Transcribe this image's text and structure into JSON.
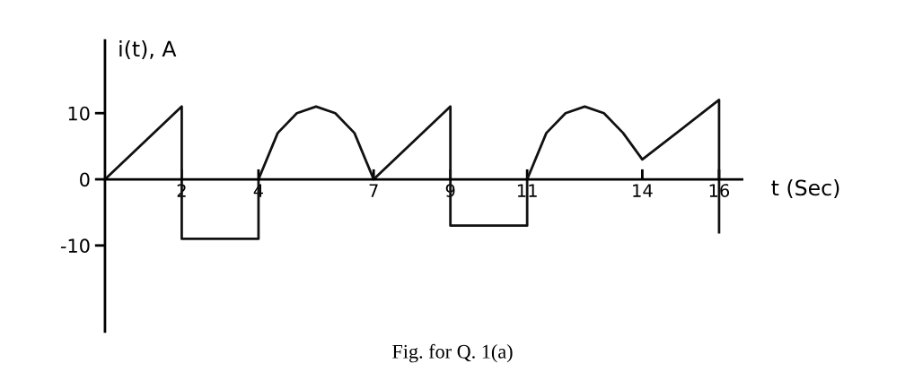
{
  "chart_data": {
    "type": "line",
    "xlabel": "t (Sec)",
    "ylabel": "i(t), A",
    "annotations": [
      "Fig. for Q. 1(a)"
    ],
    "series": [
      {
        "color": "#111111",
        "x": [
          0,
          2,
          2,
          4,
          4,
          4.5,
          5,
          5.5,
          6,
          6.5,
          7,
          9,
          9,
          11,
          11,
          11.5,
          12,
          12.5,
          13,
          13.5,
          14,
          16,
          16
        ],
        "values": [
          0,
          11,
          -9,
          -9,
          0,
          7,
          10,
          11,
          10,
          7,
          0,
          11,
          -7,
          -7,
          0,
          7,
          10,
          11,
          10,
          7,
          3,
          12,
          -8
        ]
      }
    ],
    "xlim": [
      0,
      16.6
    ],
    "ylim": [
      -23,
      21
    ],
    "xticks": [
      2,
      4,
      7,
      9,
      11,
      14,
      16
    ],
    "yticks": [
      -10,
      0,
      10
    ],
    "line_style": "solid",
    "marker": "none",
    "grid": false
  }
}
